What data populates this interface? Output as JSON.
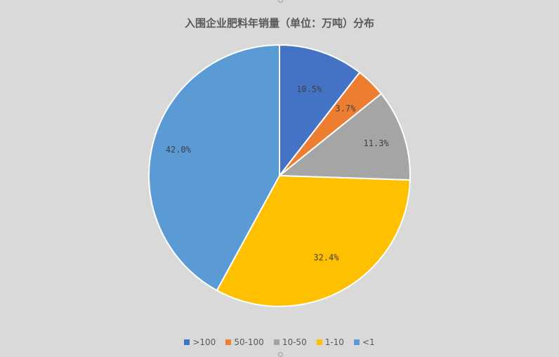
{
  "chart_data": {
    "type": "pie",
    "title": "入围企业肥料年销量（单位：万吨）分布",
    "categories": [
      ">100",
      "50-100",
      "10-50",
      "1-10",
      "<1"
    ],
    "values": [
      10.5,
      3.7,
      11.3,
      32.4,
      42.0
    ],
    "labels": [
      "10.5%",
      "3.7%",
      "11.3%",
      "32.4%",
      "42.0%"
    ],
    "colors": [
      "#4472c4",
      "#ed7d31",
      "#a5a5a5",
      "#ffc000",
      "#5b9bd5"
    ],
    "legend_position": "bottom",
    "start_angle": "12 o'clock",
    "direction": "clockwise"
  }
}
